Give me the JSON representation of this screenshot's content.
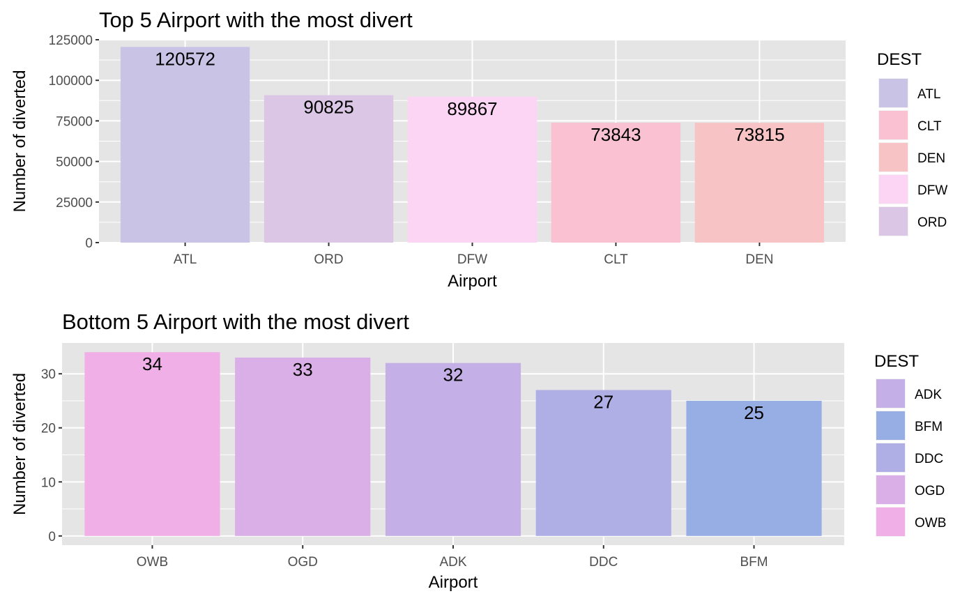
{
  "chart_data": [
    {
      "type": "bar",
      "title": "Top 5 Airport with the most divert",
      "xlabel": "Airport",
      "ylabel": "Number of diverted",
      "categories": [
        "ATL",
        "ORD",
        "DFW",
        "CLT",
        "DEN"
      ],
      "values": [
        120572,
        90825,
        89867,
        73843,
        73815
      ],
      "data_labels": [
        "120572",
        "90825",
        "89867",
        "73843",
        "73815"
      ],
      "bar_colors": [
        "#C9C4E6",
        "#DBC6E5",
        "#FCD5F5",
        "#F9C1D1",
        "#F8C3C4"
      ],
      "ylim": [
        0,
        125000
      ],
      "yticks": [
        0,
        25000,
        50000,
        75000,
        100000,
        125000
      ],
      "ytick_labels": [
        "0",
        "25000",
        "50000",
        "75000",
        "100000",
        "125000"
      ],
      "grid": true,
      "legend": {
        "title": "DEST",
        "placement": "right",
        "entries": [
          {
            "label": "ATL",
            "color": "#C9C4E6"
          },
          {
            "label": "CLT",
            "color": "#F9C1D1"
          },
          {
            "label": "DEN",
            "color": "#F8C3C4"
          },
          {
            "label": "DFW",
            "color": "#FCD5F5"
          },
          {
            "label": "ORD",
            "color": "#DBC6E5"
          }
        ]
      }
    },
    {
      "type": "bar",
      "title": "Bottom 5 Airport with the most divert",
      "xlabel": "Airport",
      "ylabel": "Number of diverted",
      "categories": [
        "OWB",
        "OGD",
        "ADK",
        "DDC",
        "BFM"
      ],
      "values": [
        34,
        33,
        32,
        27,
        25
      ],
      "data_labels": [
        "34",
        "33",
        "32",
        "27",
        "25"
      ],
      "bar_colors": [
        "#F1AFE7",
        "#DAAEE6",
        "#C4B0E6",
        "#AFAFE6",
        "#97AEE5"
      ],
      "ylim": [
        -1.7,
        35.7
      ],
      "yticks": [
        0,
        10,
        20,
        30
      ],
      "ytick_labels": [
        "0",
        "10",
        "20",
        "30"
      ],
      "grid": true,
      "legend": {
        "title": "DEST",
        "placement": "right",
        "entries": [
          {
            "label": "ADK",
            "color": "#C4B0E6"
          },
          {
            "label": "BFM",
            "color": "#97AEE5"
          },
          {
            "label": "DDC",
            "color": "#AFAFE6"
          },
          {
            "label": "OGD",
            "color": "#DAAEE6"
          },
          {
            "label": "OWB",
            "color": "#F1AFE7"
          }
        ]
      }
    }
  ],
  "colors": {
    "panel_background": "#E5E5E5",
    "grid_major": "#FFFFFF",
    "text": "#000000",
    "tick_text": "#4D4D4D",
    "tick_mark": "#333333"
  }
}
